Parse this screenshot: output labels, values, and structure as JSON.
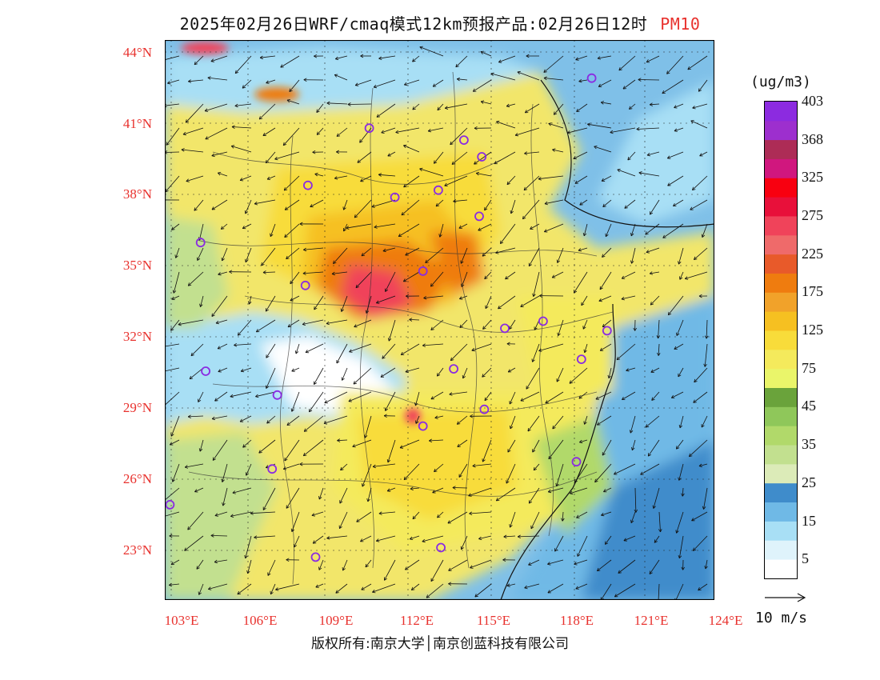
{
  "title": {
    "main": "2025年02月26日WRF/cmaq模式12km预报产品:02月26日12时",
    "pollutant": "PM10"
  },
  "map": {
    "lat_labels": [
      "44°N",
      "41°N",
      "38°N",
      "35°N",
      "32°N",
      "29°N",
      "26°N",
      "23°N"
    ],
    "lon_labels": [
      "103°E",
      "106°E",
      "109°E",
      "112°E",
      "115°E",
      "118°E",
      "121°E",
      "124°E"
    ],
    "lat_range": [
      21,
      44.5
    ],
    "lon_range": [
      102.5,
      124
    ],
    "station_markers": [
      {
        "lon": 119.2,
        "lat": 42.9
      },
      {
        "lon": 110.5,
        "lat": 40.8
      },
      {
        "lon": 114.2,
        "lat": 40.3
      },
      {
        "lon": 114.9,
        "lat": 39.6
      },
      {
        "lon": 108.1,
        "lat": 38.4
      },
      {
        "lon": 111.5,
        "lat": 37.9
      },
      {
        "lon": 113.2,
        "lat": 38.2
      },
      {
        "lon": 114.8,
        "lat": 37.1
      },
      {
        "lon": 103.9,
        "lat": 36.0
      },
      {
        "lon": 112.6,
        "lat": 34.8
      },
      {
        "lon": 108.0,
        "lat": 34.2
      },
      {
        "lon": 117.3,
        "lat": 32.7
      },
      {
        "lon": 115.8,
        "lat": 32.4
      },
      {
        "lon": 119.8,
        "lat": 32.3
      },
      {
        "lon": 118.8,
        "lat": 31.1
      },
      {
        "lon": 104.1,
        "lat": 30.6
      },
      {
        "lon": 113.8,
        "lat": 30.7
      },
      {
        "lon": 106.9,
        "lat": 29.6
      },
      {
        "lon": 115.0,
        "lat": 29.0
      },
      {
        "lon": 112.6,
        "lat": 28.3
      },
      {
        "lon": 106.7,
        "lat": 26.5
      },
      {
        "lon": 118.6,
        "lat": 26.8
      },
      {
        "lon": 102.7,
        "lat": 25.0
      },
      {
        "lon": 108.4,
        "lat": 22.8
      },
      {
        "lon": 113.3,
        "lat": 23.2
      }
    ]
  },
  "legend": {
    "unit": "(ug/m3)",
    "colors": [
      "#ffffff",
      "#dff3fb",
      "#a8dff5",
      "#6fb9e6",
      "#3f8ccb",
      "#dcebb8",
      "#c2e08f",
      "#b1d96a",
      "#8fc75a",
      "#6aa33b",
      "#eaf56a",
      "#f4ea5c",
      "#f8dc3a",
      "#f6c021",
      "#f1a22a",
      "#ef7c0f",
      "#e85a2a",
      "#ef6a6a",
      "#f0435a",
      "#e8103a",
      "#f80010",
      "#d0177e",
      "#ad2c56",
      "#9d2fce",
      "#8c2be0"
    ],
    "labels": [
      "5",
      "15",
      "25",
      "35",
      "45",
      "75",
      "125",
      "175",
      "225",
      "275",
      "325",
      "368",
      "403"
    ]
  },
  "wind_ref": {
    "label": "10 m/s"
  },
  "copyright": "版权所有:南京大学│南京创蓝科技有限公司"
}
